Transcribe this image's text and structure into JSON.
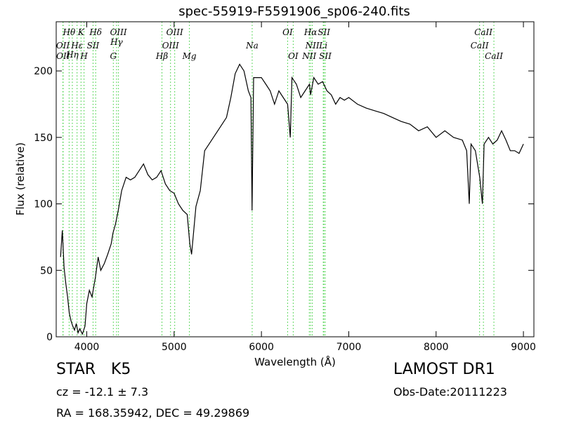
{
  "chart_data": {
    "type": "line",
    "title": "spec-55919-F5591906_sp06-240.fits",
    "xlabel": "Wavelength (Å)",
    "ylabel": "Flux (relative)",
    "xlim": [
      3650,
      9120
    ],
    "ylim": [
      0,
      237
    ],
    "xticks": [
      4000,
      5000,
      6000,
      7000,
      8000,
      9000
    ],
    "yticks": [
      0,
      50,
      100,
      150,
      200
    ],
    "grid": false,
    "line_color": "#000000",
    "marker_color": "#33cc33",
    "series": [
      {
        "x": [
          3700,
          3720,
          3740,
          3760,
          3780,
          3800,
          3820,
          3840,
          3860,
          3880,
          3900,
          3920,
          3950,
          3980,
          4000,
          4030,
          4060,
          4100,
          4130,
          4160,
          4200,
          4240,
          4280,
          4300,
          4330,
          4360,
          4400,
          4450,
          4500,
          4550,
          4600,
          4650,
          4700,
          4750,
          4800,
          4850,
          4900,
          4950,
          5000,
          5050,
          5100,
          5150,
          5180,
          5200,
          5250,
          5300,
          5350,
          5400,
          5450,
          5500,
          5550,
          5600,
          5650,
          5700,
          5750,
          5800,
          5850,
          5880,
          5893,
          5910,
          5950,
          6000,
          6050,
          6100,
          6150,
          6200,
          6250,
          6300,
          6330,
          6350,
          6400,
          6450,
          6500,
          6550,
          6563,
          6600,
          6650,
          6700,
          6750,
          6800,
          6850,
          6900,
          6950,
          7000,
          7100,
          7200,
          7300,
          7400,
          7500,
          7600,
          7700,
          7800,
          7900,
          8000,
          8100,
          8200,
          8300,
          8350,
          8380,
          8400,
          8450,
          8500,
          8530,
          8550,
          8600,
          8650,
          8700,
          8750,
          8800,
          8850,
          8900,
          8950,
          9000
        ],
        "y": [
          60,
          80,
          52,
          40,
          30,
          18,
          12,
          8,
          5,
          10,
          3,
          6,
          2,
          8,
          25,
          35,
          30,
          45,
          60,
          50,
          55,
          62,
          70,
          78,
          85,
          95,
          110,
          120,
          118,
          120,
          125,
          130,
          122,
          118,
          120,
          125,
          115,
          110,
          108,
          100,
          95,
          92,
          70,
          62,
          98,
          110,
          140,
          145,
          150,
          155,
          160,
          165,
          180,
          198,
          205,
          200,
          185,
          180,
          95,
          195,
          195,
          195,
          190,
          185,
          175,
          185,
          180,
          175,
          150,
          195,
          190,
          180,
          185,
          190,
          182,
          195,
          190,
          192,
          185,
          182,
          175,
          180,
          178,
          180,
          175,
          172,
          170,
          168,
          165,
          162,
          160,
          155,
          158,
          150,
          155,
          150,
          148,
          140,
          100,
          145,
          140,
          120,
          100,
          145,
          150,
          145,
          148,
          155,
          148,
          140,
          140,
          138,
          145
        ]
      }
    ],
    "line_markers": [
      {
        "label": "OII",
        "w": 3727,
        "row": 3
      },
      {
        "label": "OII",
        "w": 3729,
        "row": 4
      },
      {
        "label": "Hθ",
        "w": 3798,
        "row": 1
      },
      {
        "label": "Hη",
        "w": 3835,
        "row": 5
      },
      {
        "label": "Hε",
        "w": 3889,
        "row": 3
      },
      {
        "label": "K",
        "w": 3934,
        "row": 1
      },
      {
        "label": "SII",
        "w": 4072,
        "row": 3
      },
      {
        "label": "H",
        "w": 3969,
        "row": 4
      },
      {
        "label": "Hδ",
        "w": 4102,
        "row": 1
      },
      {
        "label": "G",
        "w": 4304,
        "row": 4
      },
      {
        "label": "Hγ",
        "w": 4341,
        "row": 2
      },
      {
        "label": "OIII",
        "w": 4363,
        "row": 1
      },
      {
        "label": "Hβ",
        "w": 4861,
        "row": 4
      },
      {
        "label": "OIII",
        "w": 4959,
        "row": 3
      },
      {
        "label": "OIII",
        "w": 5007,
        "row": 1
      },
      {
        "label": "Mg",
        "w": 5175,
        "row": 4
      },
      {
        "label": "Na",
        "w": 5894,
        "row": 3
      },
      {
        "label": "OI",
        "w": 6300,
        "row": 1
      },
      {
        "label": "OI",
        "w": 6364,
        "row": 4
      },
      {
        "label": "NII",
        "w": 6548,
        "row": 4
      },
      {
        "label": "Hα",
        "w": 6563,
        "row": 1
      },
      {
        "label": "NII",
        "w": 6583,
        "row": 3
      },
      {
        "label": "Li",
        "w": 6708,
        "row": 3
      },
      {
        "label": "SII",
        "w": 6716,
        "row": 1
      },
      {
        "label": "SII",
        "w": 6731,
        "row": 4
      },
      {
        "label": "CaII",
        "w": 8498,
        "row": 3
      },
      {
        "label": "CaII",
        "w": 8542,
        "row": 1
      },
      {
        "label": "CaII",
        "w": 8662,
        "row": 4
      }
    ]
  },
  "info": {
    "class_label": "STAR",
    "subclass": "K5",
    "cz": "cz = -12.1 ± 7.3",
    "coords": "RA = 168.35942, DEC = 49.29869",
    "survey": "LAMOST DR1",
    "obs_date": "Obs-Date:20111223"
  }
}
